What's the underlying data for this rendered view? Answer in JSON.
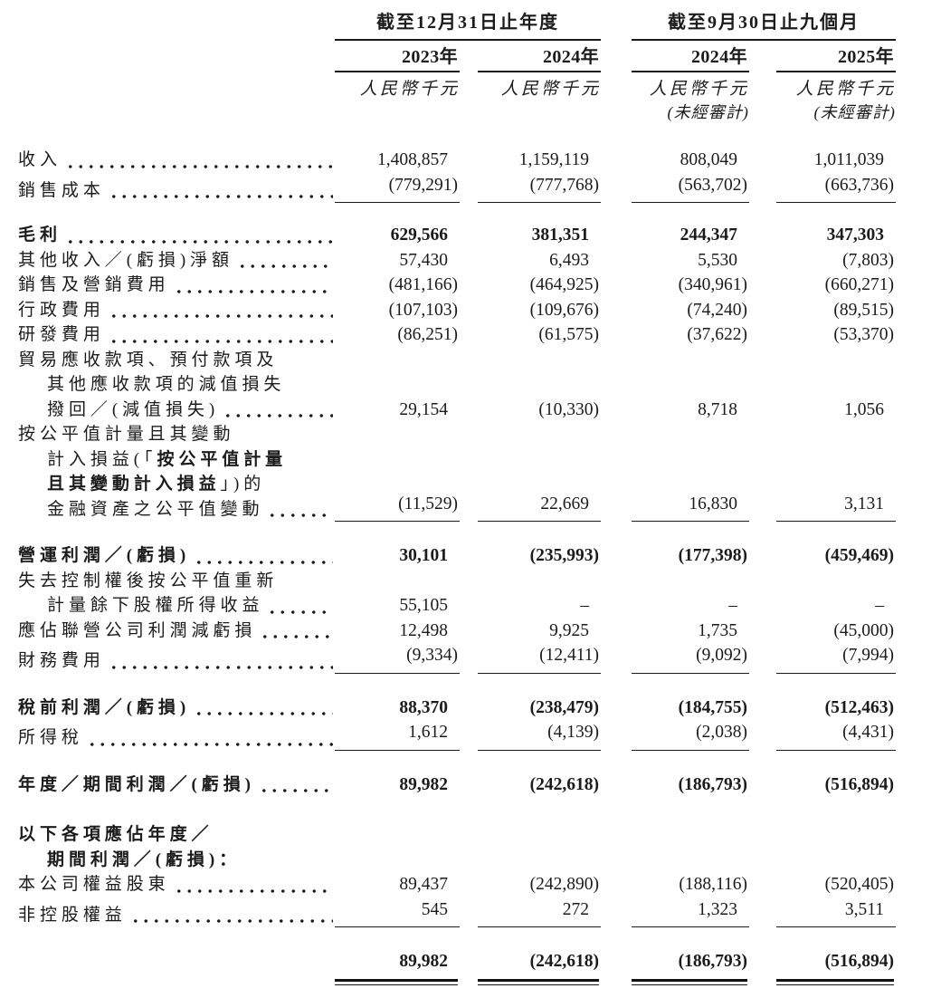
{
  "header": {
    "groups": [
      {
        "title": "截至12月31日止年度"
      },
      {
        "title": "截至9月30日止九個月"
      }
    ],
    "columns": [
      {
        "year": "2023年",
        "unit": "人民幣千元",
        "note": ""
      },
      {
        "year": "2024年",
        "unit": "人民幣千元",
        "note": ""
      },
      {
        "year": "2024年",
        "unit": "人民幣千元",
        "note": "(未經審計)"
      },
      {
        "year": "2025年",
        "unit": "人民幣千元",
        "note": "(未經審計)"
      }
    ]
  },
  "table": {
    "rows": [
      {
        "id": "revenue",
        "lines": [
          {
            "segs": [
              {
                "t": "收入"
              }
            ]
          }
        ],
        "leader": true,
        "v": [
          "1,408,857",
          "1,159,119",
          "808,049",
          "1,011,039"
        ]
      },
      {
        "id": "cost-of-sales",
        "lines": [
          {
            "segs": [
              {
                "t": "銷售成本"
              }
            ]
          }
        ],
        "leader": true,
        "rule": true,
        "v": [
          "(779,291)",
          "(777,768)",
          "(563,702)",
          "(663,736)"
        ]
      },
      {
        "sp": 22
      },
      {
        "id": "gross-profit",
        "bold": true,
        "lines": [
          {
            "segs": [
              {
                "t": "毛利"
              }
            ]
          }
        ],
        "leader": true,
        "v": [
          "629,566",
          "381,351",
          "244,347",
          "347,303"
        ]
      },
      {
        "id": "other-income-net",
        "lines": [
          {
            "segs": [
              {
                "t": "其他收入／(虧損)淨額"
              }
            ]
          }
        ],
        "leader": true,
        "v": [
          "57,430",
          "6,493",
          "5,530",
          "(7,803)"
        ]
      },
      {
        "id": "selling-marketing-expenses",
        "lines": [
          {
            "segs": [
              {
                "t": "銷售及營銷費用"
              }
            ]
          }
        ],
        "leader": true,
        "v": [
          "(481,166)",
          "(464,925)",
          "(340,961)",
          "(660,271)"
        ]
      },
      {
        "id": "admin-expenses",
        "lines": [
          {
            "segs": [
              {
                "t": "行政費用"
              }
            ]
          }
        ],
        "leader": true,
        "v": [
          "(107,103)",
          "(109,676)",
          "(74,240)",
          "(89,515)"
        ]
      },
      {
        "id": "rnd-expenses",
        "lines": [
          {
            "segs": [
              {
                "t": "研發費用"
              }
            ]
          }
        ],
        "leader": true,
        "v": [
          "(86,251)",
          "(61,575)",
          "(37,622)",
          "(53,370)"
        ]
      },
      {
        "id": "impairment-reversal",
        "leader": true,
        "lines": [
          {
            "segs": [
              {
                "t": "貿易應收款項、預付款項及"
              }
            ]
          },
          {
            "ind": 1,
            "segs": [
              {
                "t": "其他應收款項的減值損失"
              }
            ]
          },
          {
            "ind": 1,
            "segs": [
              {
                "t": "撥回／(減值損失)"
              }
            ]
          }
        ],
        "v": [
          "29,154",
          "(10,330)",
          "8,718",
          "1,056"
        ]
      },
      {
        "id": "fvtpl-fair-value-change",
        "leader": true,
        "rule": true,
        "lines": [
          {
            "segs": [
              {
                "t": "按公平值計量且其變動"
              }
            ]
          },
          {
            "ind": 1,
            "segs": [
              {
                "t": "計入損益(「"
              },
              {
                "t": "按公平值計量",
                "b": 1
              }
            ]
          },
          {
            "ind": 1,
            "segs": [
              {
                "t": "且其變動計入損益",
                "b": 1
              },
              {
                "t": "」)的"
              }
            ]
          },
          {
            "ind": 1,
            "segs": [
              {
                "t": "金融資產之公平值變動"
              }
            ]
          }
        ],
        "v": [
          "(11,529)",
          "22,669",
          "16,830",
          "3,131"
        ]
      },
      {
        "sp": 24
      },
      {
        "id": "operating-profit",
        "bold": true,
        "lines": [
          {
            "segs": [
              {
                "t": "營運利潤／(虧損)"
              }
            ]
          }
        ],
        "leader": true,
        "v": [
          "30,101",
          "(235,993)",
          "(177,398)",
          "(459,469)"
        ]
      },
      {
        "id": "remeasurement-gain",
        "leader": true,
        "lines": [
          {
            "segs": [
              {
                "t": "失去控制權後按公平值重新"
              }
            ]
          },
          {
            "ind": 1,
            "segs": [
              {
                "t": "計量餘下股權所得收益"
              }
            ]
          }
        ],
        "v": [
          "55,105",
          "–",
          "–",
          "–"
        ]
      },
      {
        "id": "share-of-associates",
        "lines": [
          {
            "segs": [
              {
                "t": "應佔聯營公司利潤減虧損"
              }
            ]
          }
        ],
        "leader": true,
        "v": [
          "12,498",
          "9,925",
          "1,735",
          "(45,000)"
        ]
      },
      {
        "id": "finance-costs",
        "lines": [
          {
            "segs": [
              {
                "t": "財務費用"
              }
            ]
          }
        ],
        "leader": true,
        "rule": true,
        "v": [
          "(9,334)",
          "(12,411)",
          "(9,092)",
          "(7,994)"
        ]
      },
      {
        "sp": 24
      },
      {
        "id": "profit-before-tax",
        "bold": true,
        "lines": [
          {
            "segs": [
              {
                "t": "稅前利潤／(虧損)"
              }
            ]
          }
        ],
        "leader": true,
        "v": [
          "88,370",
          "(238,479)",
          "(184,755)",
          "(512,463)"
        ]
      },
      {
        "id": "income-tax",
        "lines": [
          {
            "segs": [
              {
                "t": "所得稅"
              }
            ]
          }
        ],
        "leader": true,
        "rule": true,
        "v": [
          "1,612",
          "(4,139)",
          "(2,038)",
          "(4,431)"
        ]
      },
      {
        "sp": 24
      },
      {
        "id": "profit-for-period",
        "bold": true,
        "lines": [
          {
            "segs": [
              {
                "t": "年度／期間利潤／(虧損)"
              }
            ]
          }
        ],
        "leader": true,
        "v": [
          "89,982",
          "(242,618)",
          "(186,793)",
          "(516,894)"
        ]
      },
      {
        "sp": 28
      },
      {
        "id": "attributable-header",
        "bold": true,
        "lines": [
          {
            "segs": [
              {
                "t": "以下各項應佔年度／"
              }
            ]
          },
          {
            "ind": 1,
            "segs": [
              {
                "t": "期間利潤／(虧損)："
              }
            ]
          }
        ]
      },
      {
        "id": "equity-shareholders",
        "lines": [
          {
            "segs": [
              {
                "t": "本公司權益股東"
              }
            ]
          }
        ],
        "leader": true,
        "v": [
          "89,437",
          "(242,890)",
          "(188,116)",
          "(520,405)"
        ]
      },
      {
        "id": "non-controlling-interests",
        "lines": [
          {
            "segs": [
              {
                "t": "非控股權益"
              }
            ]
          }
        ],
        "leader": true,
        "rule": true,
        "v": [
          "545",
          "272",
          "1,323",
          "3,511"
        ]
      },
      {
        "sp": 24
      },
      {
        "id": "total-profit",
        "bold": true,
        "double": true,
        "v": [
          "89,982",
          "(242,618)",
          "(186,793)",
          "(516,894)"
        ]
      }
    ]
  }
}
